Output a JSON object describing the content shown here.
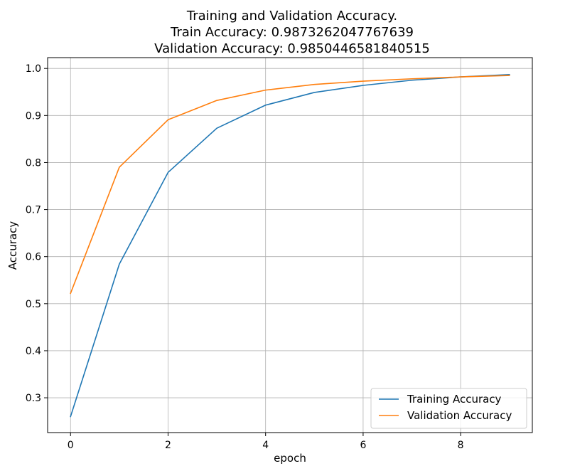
{
  "chart_data": {
    "type": "line",
    "title_lines": [
      "Training and Validation Accuracy.",
      "Train Accuracy: 0.9873262047767639",
      "Validation Accuracy: 0.9850446581840515"
    ],
    "xlabel": "epoch",
    "ylabel": "Accuracy",
    "x": [
      0,
      1,
      2,
      3,
      4,
      5,
      6,
      7,
      8,
      9
    ],
    "xlim": [
      -0.47,
      9.47
    ],
    "ylim": [
      0.226,
      1.023
    ],
    "xticks": [
      0,
      2,
      4,
      6,
      8
    ],
    "xtick_labels": [
      "0",
      "2",
      "4",
      "6",
      "8"
    ],
    "yticks": [
      0.3,
      0.4,
      0.5,
      0.6,
      0.7,
      0.8,
      0.9,
      1.0
    ],
    "ytick_labels": [
      "0.3",
      "0.4",
      "0.5",
      "0.6",
      "0.7",
      "0.8",
      "0.9",
      "1.0"
    ],
    "grid": true,
    "legend_position": "bottom-right",
    "series": [
      {
        "name": "Training Accuracy",
        "color": "#1f77b4",
        "values": [
          0.26,
          0.584,
          0.779,
          0.873,
          0.922,
          0.949,
          0.964,
          0.975,
          0.982,
          0.987
        ]
      },
      {
        "name": "Validation Accuracy",
        "color": "#ff7f0e",
        "values": [
          0.522,
          0.79,
          0.891,
          0.932,
          0.954,
          0.966,
          0.973,
          0.978,
          0.982,
          0.985
        ]
      }
    ]
  }
}
